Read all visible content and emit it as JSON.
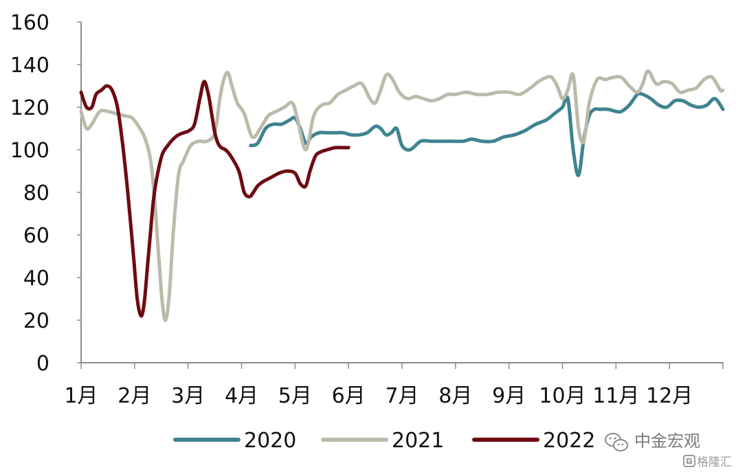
{
  "chart_data": {
    "type": "line",
    "title": "",
    "xlabel": "",
    "ylabel": "",
    "ylim": [
      0,
      160
    ],
    "yticks": [
      "0",
      "20",
      "40",
      "60",
      "80",
      "100",
      "120",
      "140",
      "160"
    ],
    "xlim": [
      1,
      13
    ],
    "categories": [
      "1月",
      "2月",
      "3月",
      "4月",
      "5月",
      "6月",
      "7月",
      "8月",
      "9月",
      "10月",
      "11月",
      "12月"
    ],
    "grid": false,
    "legend_position": "bottom",
    "series": [
      {
        "name": "2020",
        "color": "#3f8390",
        "x": [
          4.17,
          4.3,
          4.45,
          4.6,
          4.75,
          4.9,
          5.0,
          5.1,
          5.2,
          5.3,
          5.45,
          5.6,
          5.75,
          5.9,
          6.05,
          6.2,
          6.35,
          6.5,
          6.6,
          6.7,
          6.8,
          6.9,
          7.0,
          7.15,
          7.35,
          7.55,
          7.75,
          7.95,
          8.15,
          8.3,
          8.5,
          8.7,
          8.9,
          9.1,
          9.3,
          9.5,
          9.7,
          9.85,
          10.0,
          10.1,
          10.2,
          10.3,
          10.4,
          10.5,
          10.6,
          10.7,
          10.85,
          11.0,
          11.1,
          11.25,
          11.4,
          11.5,
          11.65,
          11.8,
          11.95,
          12.1,
          12.25,
          12.4,
          12.55,
          12.7,
          12.85,
          13.0
        ],
        "y": [
          102,
          103,
          110,
          112,
          112,
          114,
          115,
          110,
          103,
          106,
          108,
          108,
          108,
          108,
          107,
          107,
          108,
          111,
          110,
          107,
          108,
          110,
          102,
          100,
          104,
          104,
          104,
          104,
          104,
          105,
          104,
          104,
          106,
          107,
          109,
          112,
          114,
          117,
          120,
          124,
          100,
          88,
          105,
          116,
          119,
          119,
          119,
          118,
          118,
          121,
          126,
          126,
          124,
          121,
          120,
          123,
          123,
          121,
          120,
          121,
          124,
          119
        ]
      },
      {
        "name": "2021",
        "color": "#bcbaaa",
        "x": [
          1.0,
          1.1,
          1.2,
          1.35,
          1.5,
          1.65,
          1.8,
          1.95,
          2.1,
          2.2,
          2.3,
          2.38,
          2.45,
          2.52,
          2.58,
          2.65,
          2.72,
          2.82,
          2.92,
          3.05,
          3.2,
          3.35,
          3.5,
          3.6,
          3.68,
          3.75,
          3.82,
          3.92,
          4.05,
          4.2,
          4.35,
          4.5,
          4.65,
          4.8,
          4.95,
          5.05,
          5.2,
          5.35,
          5.5,
          5.65,
          5.8,
          5.95,
          6.1,
          6.25,
          6.4,
          6.5,
          6.6,
          6.7,
          6.8,
          6.95,
          7.1,
          7.25,
          7.4,
          7.55,
          7.7,
          7.85,
          8.0,
          8.2,
          8.4,
          8.6,
          8.8,
          9.0,
          9.2,
          9.4,
          9.55,
          9.7,
          9.8,
          9.9,
          10.0,
          10.1,
          10.2,
          10.3,
          10.4,
          10.5,
          10.65,
          10.8,
          10.95,
          11.1,
          11.25,
          11.4,
          11.5,
          11.6,
          11.75,
          11.9,
          12.05,
          12.2,
          12.35,
          12.5,
          12.65,
          12.8,
          12.95,
          13.0
        ],
        "y": [
          118,
          110,
          112,
          118,
          118,
          117,
          116,
          115,
          110,
          105,
          95,
          75,
          50,
          28,
          20,
          32,
          60,
          88,
          95,
          102,
          104,
          104,
          108,
          125,
          134,
          136,
          130,
          122,
          117,
          106,
          110,
          116,
          118,
          120,
          122,
          114,
          100,
          116,
          121,
          122,
          126,
          128,
          130,
          131,
          124,
          122,
          128,
          135,
          134,
          127,
          124,
          125,
          124,
          123,
          124,
          126,
          126,
          127,
          126,
          126,
          127,
          127,
          126,
          129,
          132,
          134,
          134,
          130,
          124,
          128,
          135,
          110,
          104,
          122,
          133,
          133,
          134,
          134,
          130,
          127,
          131,
          137,
          131,
          132,
          131,
          127,
          128,
          129,
          133,
          134,
          128,
          128
        ]
      },
      {
        "name": "2022",
        "color": "#6e0b12",
        "x": [
          1.0,
          1.1,
          1.2,
          1.28,
          1.38,
          1.48,
          1.58,
          1.68,
          1.78,
          1.88,
          1.98,
          2.05,
          2.12,
          2.18,
          2.24,
          2.3,
          2.36,
          2.44,
          2.52,
          2.62,
          2.72,
          2.82,
          2.92,
          3.02,
          3.12,
          3.22,
          3.3,
          3.38,
          3.44,
          3.5,
          3.56,
          3.62,
          3.7,
          3.8,
          3.95,
          4.05,
          4.15,
          4.22,
          4.3,
          4.4,
          4.55,
          4.7,
          4.85,
          5.0,
          5.1,
          5.2,
          5.28,
          5.38,
          5.48,
          5.6,
          5.75,
          5.9,
          6.0
        ],
        "y": [
          127,
          120,
          120,
          126,
          128,
          130,
          128,
          120,
          102,
          78,
          50,
          30,
          22,
          28,
          45,
          62,
          78,
          90,
          98,
          102,
          105,
          107,
          108,
          109,
          112,
          124,
          132,
          126,
          117,
          108,
          103,
          101,
          100,
          97,
          90,
          80,
          78,
          80,
          83,
          85,
          87,
          89,
          90,
          89,
          84,
          83,
          90,
          97,
          99,
          100,
          101,
          101,
          101
        ]
      }
    ]
  },
  "watermark": {
    "icon": "wechat-icon",
    "name": "中金宏观",
    "sub_icon": "gelonghui-logo-icon",
    "sub_text": "格隆汇"
  }
}
